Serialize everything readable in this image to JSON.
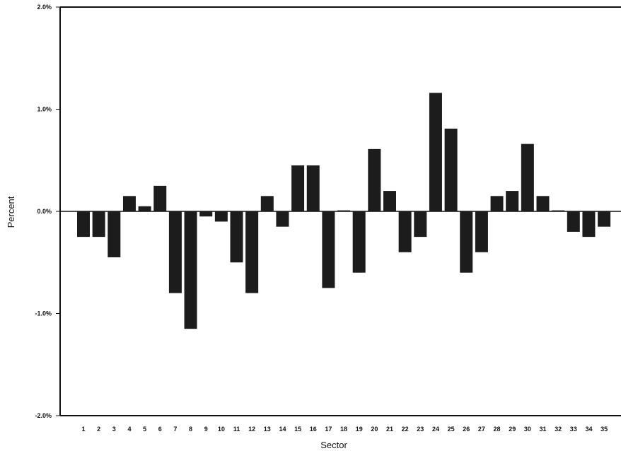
{
  "chart_data": {
    "type": "bar",
    "title": "",
    "xlabel": "Sector",
    "ylabel": "Percent",
    "ylim": [
      -2.0,
      2.0
    ],
    "yticks": [
      2.0,
      1.0,
      0.0,
      -1.0,
      -2.0
    ],
    "ytick_labels": [
      "2.0%",
      "1.0%",
      "0.0%",
      "-1.0%",
      "-2.0%"
    ],
    "categories": [
      "1",
      "2",
      "3",
      "4",
      "5",
      "6",
      "7",
      "8",
      "9",
      "10",
      "11",
      "12",
      "13",
      "14",
      "15",
      "16",
      "17",
      "18",
      "19",
      "20",
      "21",
      "22",
      "23",
      "24",
      "25",
      "26",
      "27",
      "28",
      "29",
      "30",
      "31",
      "32",
      "33",
      "34",
      "35"
    ],
    "values": [
      -0.25,
      -0.25,
      -0.45,
      0.15,
      0.05,
      0.25,
      -0.8,
      -1.15,
      -0.05,
      -0.1,
      -0.5,
      -0.8,
      0.15,
      -0.15,
      0.45,
      0.45,
      -0.75,
      0.01,
      -0.6,
      0.61,
      0.2,
      -0.4,
      -0.25,
      1.16,
      0.81,
      -0.6,
      -0.4,
      0.15,
      0.2,
      0.66,
      0.15,
      0.01,
      -0.2,
      -0.25,
      -0.15
    ],
    "grid": false,
    "legend": "none",
    "bar_color": "#1c1c1c"
  }
}
